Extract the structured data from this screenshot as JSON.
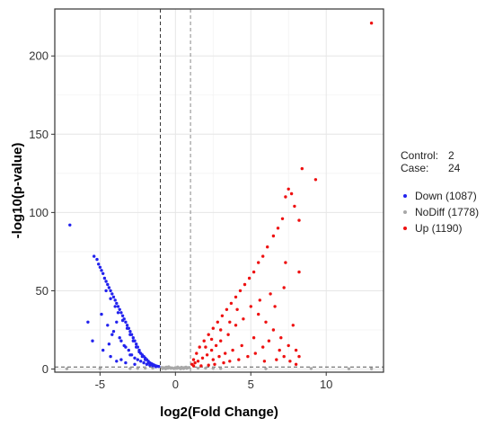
{
  "chart_data": {
    "type": "scatter",
    "xlabel": "log2(Fold Change)",
    "ylabel": "-log10(p-value)",
    "xlim": [
      -8,
      13.8
    ],
    "ylim": [
      -2,
      230
    ],
    "x_ticks": [
      -5,
      0,
      5,
      10
    ],
    "y_ticks": [
      0,
      50,
      100,
      150,
      200
    ],
    "x_tick_labels": [
      "-5",
      "0",
      "5",
      "10"
    ],
    "y_tick_labels": [
      "0",
      "50",
      "100",
      "150",
      "200"
    ],
    "grid": true,
    "fold_change_thresholds": [
      -1,
      1
    ],
    "pvalue_threshold": 1.3,
    "groups": {
      "control_label": "Control:",
      "control_value": "2",
      "case_label": "Case:",
      "case_value": "24"
    },
    "legend_position": "right",
    "series": [
      {
        "name": "Down",
        "count": "(1087)",
        "color": "#2222ee",
        "points": [
          [
            -7,
            92
          ],
          [
            -5.4,
            72
          ],
          [
            -5.2,
            70
          ],
          [
            -5.1,
            67
          ],
          [
            -5,
            65
          ],
          [
            -4.9,
            63
          ],
          [
            -4.8,
            61
          ],
          [
            -4.7,
            58
          ],
          [
            -4.6,
            56
          ],
          [
            -4.5,
            54
          ],
          [
            -4.4,
            52
          ],
          [
            -4.3,
            50
          ],
          [
            -4.2,
            48
          ],
          [
            -4.1,
            46
          ],
          [
            -4,
            44
          ],
          [
            -3.9,
            42
          ],
          [
            -3.8,
            40
          ],
          [
            -3.7,
            38
          ],
          [
            -3.6,
            36
          ],
          [
            -3.5,
            34
          ],
          [
            -3.4,
            32
          ],
          [
            -3.3,
            30
          ],
          [
            -3.2,
            28
          ],
          [
            -3.1,
            26
          ],
          [
            -3,
            24
          ],
          [
            -2.9,
            22
          ],
          [
            -2.8,
            20
          ],
          [
            -2.7,
            18
          ],
          [
            -2.6,
            16
          ],
          [
            -2.5,
            14
          ],
          [
            -2.4,
            12
          ],
          [
            -2.3,
            10
          ],
          [
            -2.2,
            9
          ],
          [
            -2.1,
            8
          ],
          [
            -2,
            7
          ],
          [
            -1.9,
            6
          ],
          [
            -1.8,
            5
          ],
          [
            -1.7,
            4
          ],
          [
            -1.6,
            3.5
          ],
          [
            -1.5,
            3
          ],
          [
            -1.4,
            2.5
          ],
          [
            -1.3,
            2
          ],
          [
            -1.2,
            1.8
          ],
          [
            -1.1,
            1.6
          ],
          [
            -4.6,
            50
          ],
          [
            -4.3,
            45
          ],
          [
            -4,
            40
          ],
          [
            -3.8,
            36
          ],
          [
            -3.5,
            31
          ],
          [
            -3.2,
            26
          ],
          [
            -3,
            22
          ],
          [
            -2.8,
            18
          ],
          [
            -2.6,
            14
          ],
          [
            -2.4,
            11
          ],
          [
            -2.2,
            8
          ],
          [
            -2,
            6
          ],
          [
            -1.8,
            4
          ],
          [
            -1.6,
            3
          ],
          [
            -5.8,
            30
          ],
          [
            -5.5,
            18
          ],
          [
            -4.9,
            35
          ],
          [
            -4.5,
            28
          ],
          [
            -4.2,
            22
          ],
          [
            -3.9,
            30
          ],
          [
            -3.7,
            20
          ],
          [
            -3.4,
            15
          ],
          [
            -3.1,
            12
          ],
          [
            -2.9,
            9
          ],
          [
            -2.7,
            7
          ],
          [
            -2.5,
            6
          ],
          [
            -4.8,
            12
          ],
          [
            -4.3,
            8
          ],
          [
            -3.6,
            6
          ],
          [
            -3.3,
            4
          ],
          [
            -2.7,
            3
          ],
          [
            -3.9,
            5
          ],
          [
            -2.3,
            5
          ],
          [
            -2.1,
            4
          ],
          [
            -1.9,
            3
          ],
          [
            -1.7,
            2.5
          ],
          [
            -1.5,
            2
          ],
          [
            -1.3,
            1.5
          ],
          [
            -4.1,
            24
          ],
          [
            -3.6,
            18
          ],
          [
            -3.3,
            14
          ],
          [
            -4.4,
            16
          ],
          [
            -3,
            9
          ]
        ]
      },
      {
        "name": "NoDiff",
        "count": "(1778)",
        "color": "#a8a8a8",
        "points": [
          [
            -0.9,
            1
          ],
          [
            -0.8,
            0.8
          ],
          [
            -0.7,
            0.6
          ],
          [
            -0.6,
            1.2
          ],
          [
            -0.5,
            0.5
          ],
          [
            -0.4,
            0.9
          ],
          [
            -0.3,
            0.4
          ],
          [
            -0.2,
            0.7
          ],
          [
            -0.1,
            0.3
          ],
          [
            0,
            0.6
          ],
          [
            0.1,
            0.4
          ],
          [
            0.2,
            0.8
          ],
          [
            0.3,
            0.5
          ],
          [
            0.4,
            1.1
          ],
          [
            0.5,
            0.6
          ],
          [
            0.6,
            0.9
          ],
          [
            0.7,
            1.2
          ],
          [
            0.8,
            0.7
          ],
          [
            0.9,
            1
          ],
          [
            -0.85,
            0.3
          ],
          [
            -0.65,
            0.2
          ],
          [
            -0.45,
            1.4
          ],
          [
            0.15,
            1.3
          ],
          [
            0.35,
            0.2
          ],
          [
            0.55,
            0.3
          ],
          [
            0.75,
            0.4
          ],
          [
            -1.5,
            0.6
          ],
          [
            -2,
            0.5
          ],
          [
            -2.5,
            0.4
          ],
          [
            -3,
            0.3
          ],
          [
            1.5,
            0.6
          ],
          [
            2,
            0.5
          ],
          [
            2.5,
            0.4
          ],
          [
            3,
            0.3
          ],
          [
            -7.2,
            0.2
          ],
          [
            -5,
            0.3
          ],
          [
            6,
            0.2
          ],
          [
            9,
            0.3
          ],
          [
            11.5,
            0.2
          ],
          [
            13,
            0.1
          ]
        ]
      },
      {
        "name": "Up",
        "count": "(1190)",
        "color": "#ee1111",
        "points": [
          [
            13,
            221
          ],
          [
            8.4,
            128
          ],
          [
            9.3,
            121
          ],
          [
            7.5,
            115
          ],
          [
            7.7,
            112
          ],
          [
            7.3,
            110
          ],
          [
            7.9,
            104
          ],
          [
            8.2,
            95
          ],
          [
            7.1,
            96
          ],
          [
            6.8,
            90
          ],
          [
            6.5,
            85
          ],
          [
            6.1,
            78
          ],
          [
            5.8,
            72
          ],
          [
            5.5,
            68
          ],
          [
            5.2,
            62
          ],
          [
            4.9,
            58
          ],
          [
            4.6,
            54
          ],
          [
            4.3,
            50
          ],
          [
            4,
            46
          ],
          [
            3.7,
            42
          ],
          [
            3.4,
            38
          ],
          [
            3.1,
            34
          ],
          [
            2.8,
            30
          ],
          [
            2.5,
            26
          ],
          [
            2.2,
            22
          ],
          [
            1.9,
            18
          ],
          [
            1.6,
            14
          ],
          [
            1.4,
            10
          ],
          [
            1.2,
            6
          ],
          [
            1.1,
            3
          ],
          [
            5,
            40
          ],
          [
            5.5,
            35
          ],
          [
            6,
            30
          ],
          [
            6.5,
            25
          ],
          [
            7,
            20
          ],
          [
            7.5,
            15
          ],
          [
            8,
            12
          ],
          [
            8.2,
            8
          ],
          [
            4.5,
            32
          ],
          [
            4,
            28
          ],
          [
            3.5,
            22
          ],
          [
            3,
            18
          ],
          [
            2.7,
            15
          ],
          [
            2.4,
            12
          ],
          [
            2.1,
            9
          ],
          [
            1.8,
            7
          ],
          [
            1.5,
            5
          ],
          [
            1.3,
            4
          ],
          [
            1.2,
            2
          ],
          [
            6.2,
            18
          ],
          [
            5.8,
            14
          ],
          [
            5.3,
            10
          ],
          [
            4.8,
            8
          ],
          [
            4.2,
            6
          ],
          [
            3.6,
            5
          ],
          [
            3.2,
            4
          ],
          [
            2.6,
            3
          ],
          [
            2.2,
            2.5
          ],
          [
            1.7,
            2
          ],
          [
            7.2,
            8
          ],
          [
            6.7,
            6
          ],
          [
            5.9,
            5
          ],
          [
            6.6,
            40
          ],
          [
            7.8,
            28
          ],
          [
            7.2,
            52
          ],
          [
            8.2,
            62
          ],
          [
            5.2,
            20
          ],
          [
            4.4,
            15
          ],
          [
            3.8,
            12
          ],
          [
            3.3,
            10
          ],
          [
            2.9,
            8
          ],
          [
            2.5,
            6
          ],
          [
            6.9,
            12
          ],
          [
            7.6,
            5
          ],
          [
            8,
            3
          ],
          [
            7.3,
            68
          ],
          [
            6.3,
            48
          ],
          [
            5.6,
            44
          ],
          [
            4.1,
            38
          ],
          [
            3.6,
            30
          ],
          [
            3,
            25
          ],
          [
            2.4,
            19
          ],
          [
            2,
            14
          ]
        ]
      }
    ]
  }
}
